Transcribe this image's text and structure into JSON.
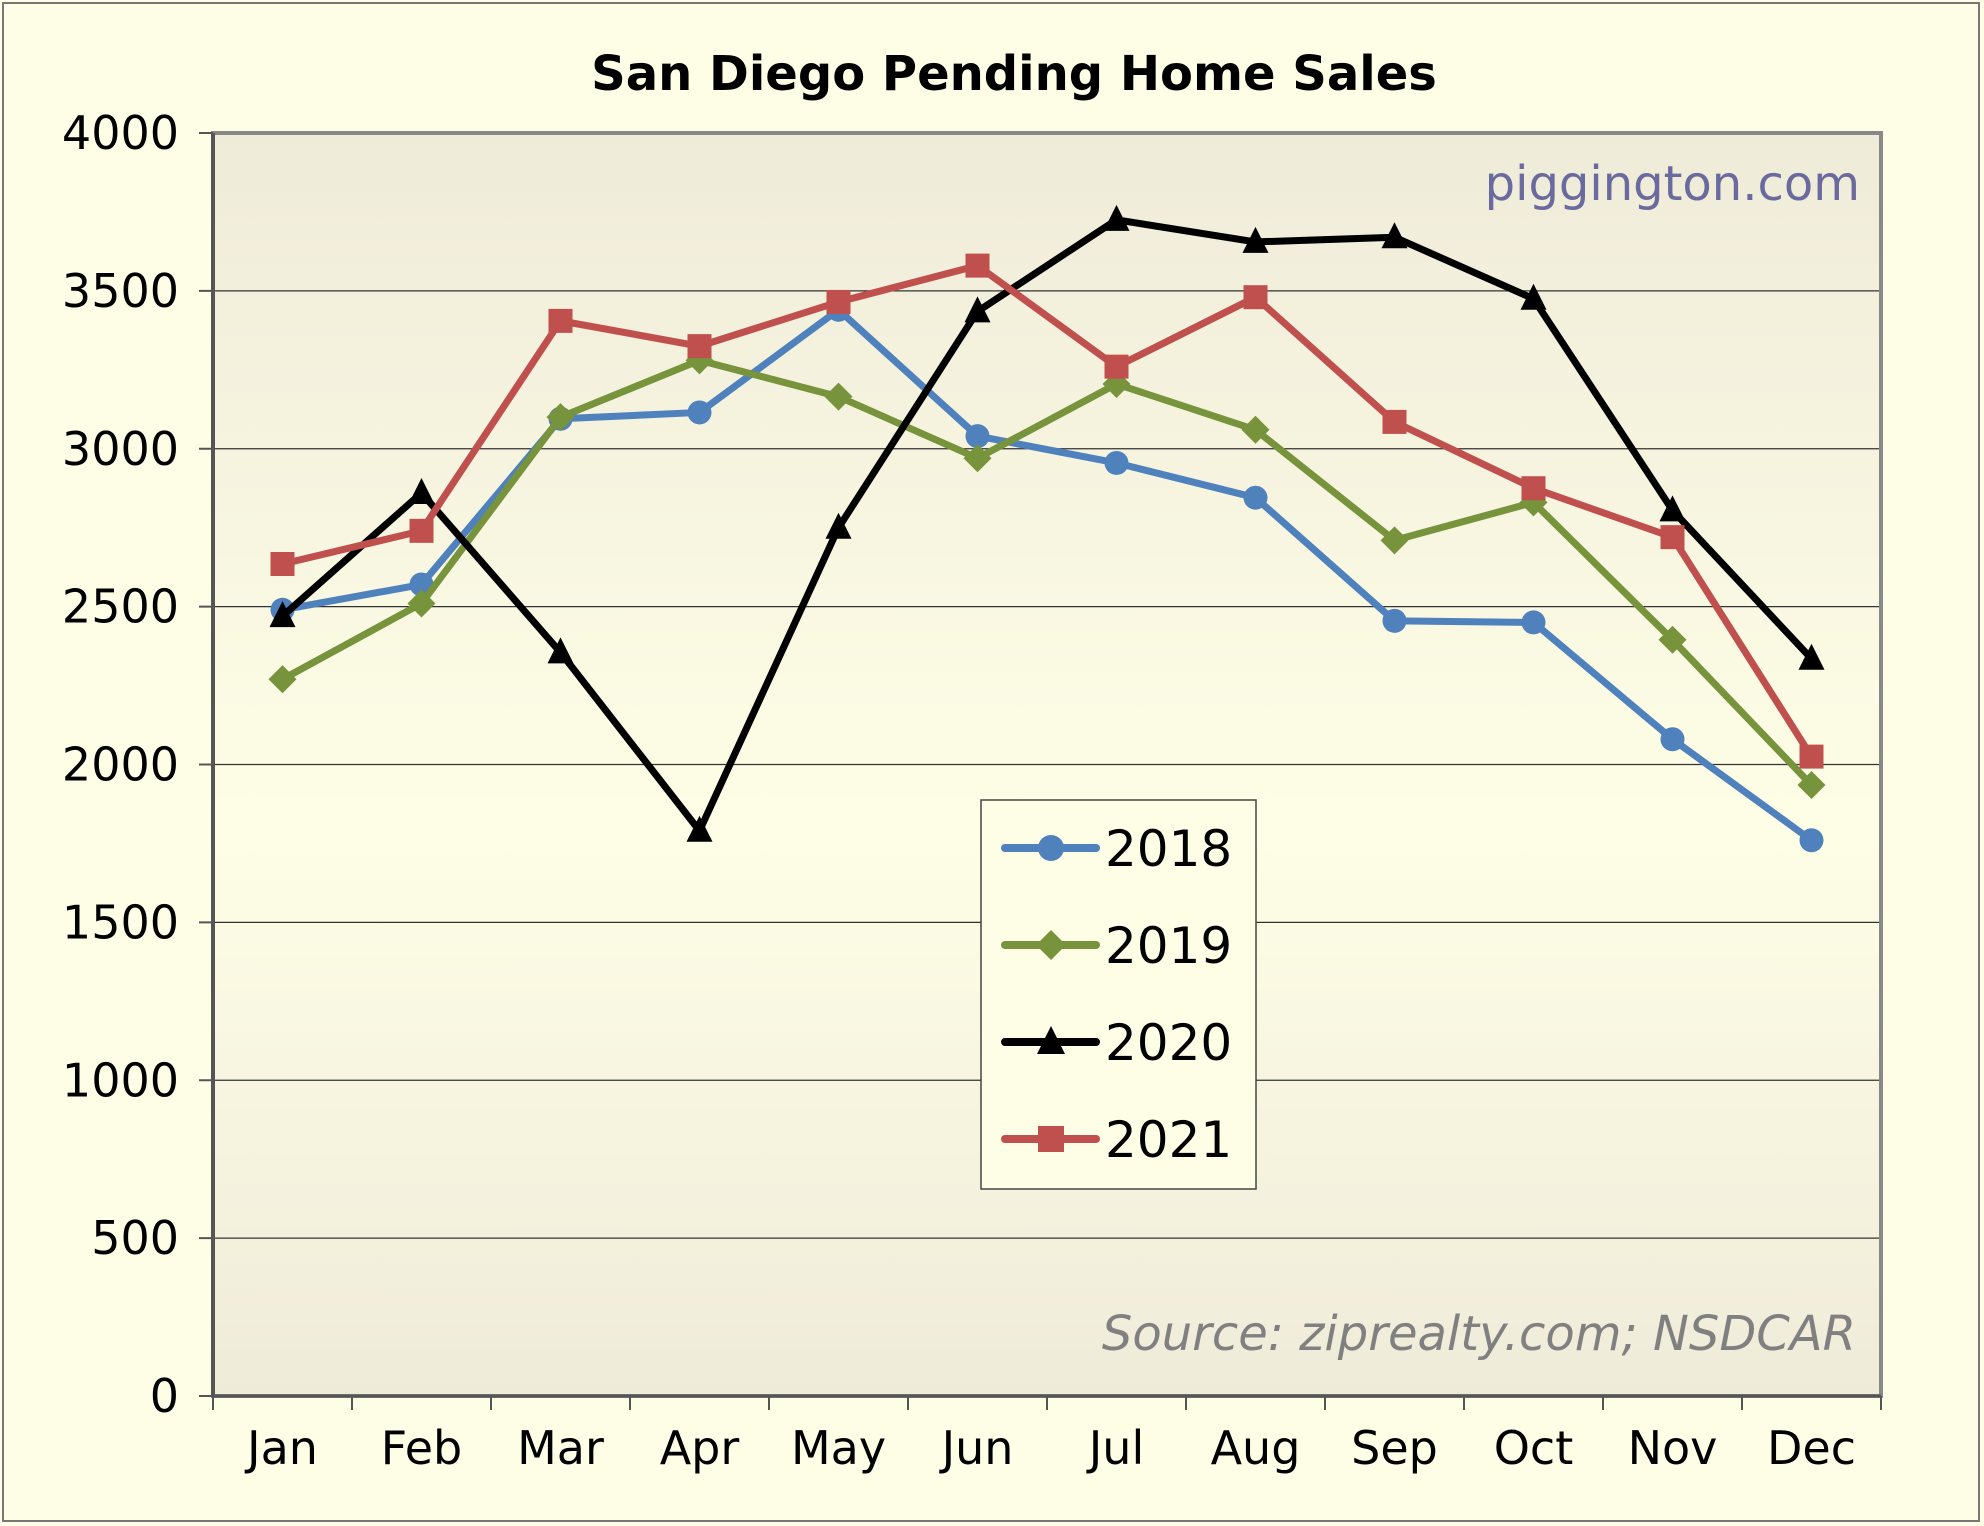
{
  "chart_data": {
    "type": "line",
    "title": "San Diego Pending Home Sales",
    "xlabel": "",
    "ylabel": "",
    "categories": [
      "Jan",
      "Feb",
      "Mar",
      "Apr",
      "May",
      "Jun",
      "Jul",
      "Aug",
      "Sep",
      "Oct",
      "Nov",
      "Dec"
    ],
    "ylim": [
      0,
      4000
    ],
    "yticks": [
      0,
      500,
      1000,
      1500,
      2000,
      2500,
      3000,
      3500,
      4000
    ],
    "grid": true,
    "legend_position": "center",
    "series": [
      {
        "name": "2018",
        "color": "#4f81bd",
        "marker": "circle",
        "values": [
          2490,
          2570,
          3095,
          3115,
          3440,
          3040,
          2955,
          2845,
          2455,
          2450,
          2080,
          1760
        ]
      },
      {
        "name": "2019",
        "color": "#77933c",
        "marker": "diamond",
        "values": [
          2270,
          2510,
          3100,
          3280,
          3165,
          2970,
          3205,
          3060,
          2710,
          2830,
          2395,
          1935
        ]
      },
      {
        "name": "2020",
        "color": "#000000",
        "marker": "triangle",
        "values": [
          2470,
          2860,
          2355,
          1790,
          2750,
          3435,
          3725,
          3655,
          3670,
          3475,
          2805,
          2335
        ]
      },
      {
        "name": "2021",
        "color": "#c0504d",
        "marker": "square",
        "values": [
          2635,
          2740,
          3405,
          3325,
          3465,
          3580,
          3260,
          3480,
          3085,
          2875,
          2720,
          2025
        ]
      }
    ],
    "annotations": {
      "watermark": "piggington.com",
      "source": "Source: ziprealty.com; NSDCAR"
    }
  }
}
